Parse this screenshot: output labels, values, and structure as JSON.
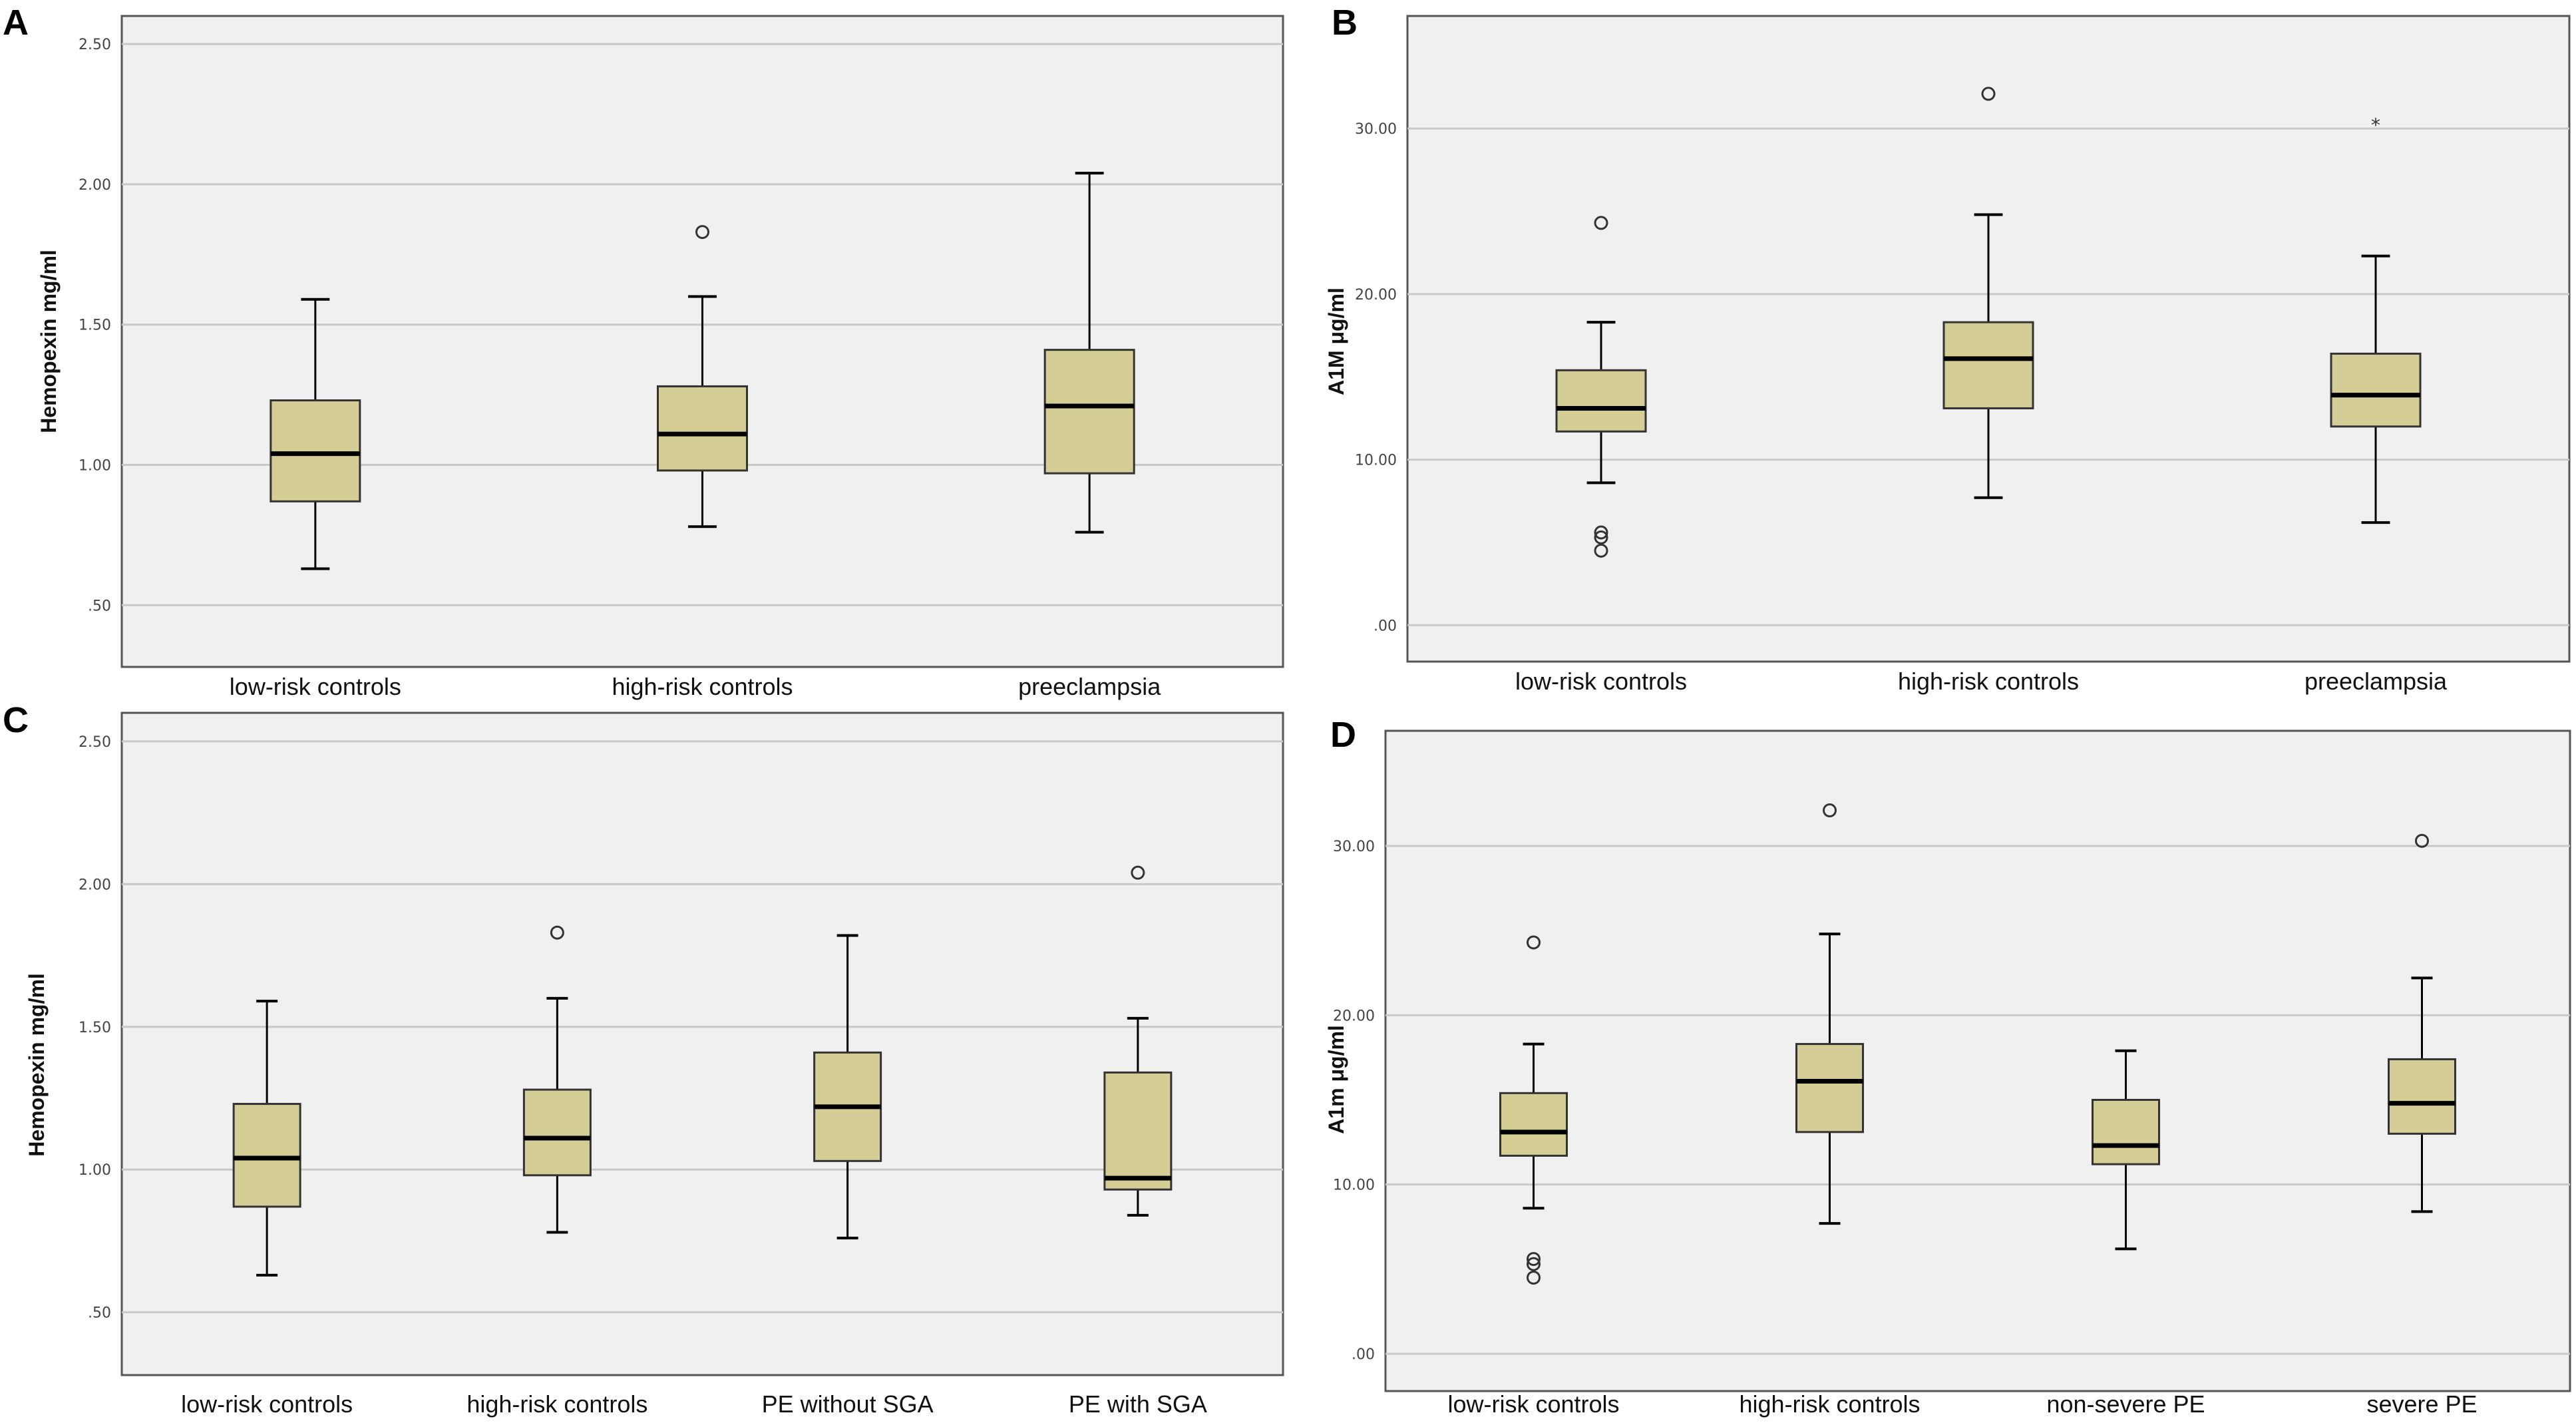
{
  "chart_data": [
    {
      "panel": "A",
      "type": "box",
      "ylabel": "Hemopexin mg/ml",
      "ylim": [
        0.28,
        2.6
      ],
      "yticks": [
        0.5,
        1.0,
        1.5,
        2.0,
        2.5
      ],
      "ytick_labels": [
        ".50",
        "1.00",
        "1.50",
        "2.00",
        "2.50"
      ],
      "categories": [
        "low-risk controls",
        "high-risk controls",
        "preeclampsia"
      ],
      "boxes": [
        {
          "min": 0.63,
          "q1": 0.87,
          "median": 1.04,
          "q3": 1.23,
          "max": 1.59,
          "outliers": [],
          "extremes": []
        },
        {
          "min": 0.78,
          "q1": 0.98,
          "median": 1.11,
          "q3": 1.28,
          "max": 1.6,
          "outliers": [
            1.83
          ],
          "extremes": []
        },
        {
          "min": 0.76,
          "q1": 0.97,
          "median": 1.21,
          "q3": 1.41,
          "max": 2.04,
          "outliers": [],
          "extremes": []
        }
      ]
    },
    {
      "panel": "B",
      "type": "box",
      "ylabel": "A1M μg/ml",
      "ylim": [
        -2.2,
        36.8
      ],
      "yticks": [
        0,
        10,
        20,
        30
      ],
      "ytick_labels": [
        ".00",
        "10.00",
        "20.00",
        "30.00"
      ],
      "categories": [
        "low-risk controls",
        "high-risk controls",
        "preeclampsia"
      ],
      "boxes": [
        {
          "min": 8.6,
          "q1": 11.7,
          "median": 13.1,
          "q3": 15.4,
          "max": 18.3,
          "outliers": [
            24.3,
            5.6,
            5.3,
            4.5
          ],
          "extremes": []
        },
        {
          "min": 7.7,
          "q1": 13.1,
          "median": 16.1,
          "q3": 18.3,
          "max": 24.8,
          "outliers": [
            32.1
          ],
          "extremes": []
        },
        {
          "min": 6.2,
          "q1": 12.0,
          "median": 13.9,
          "q3": 16.4,
          "max": 22.3,
          "outliers": [],
          "extremes": [
            30.3
          ]
        }
      ]
    },
    {
      "panel": "C",
      "type": "box",
      "ylabel": "Hemopexin mg/ml",
      "ylim": [
        0.28,
        2.6
      ],
      "yticks": [
        0.5,
        1.0,
        1.5,
        2.0,
        2.5
      ],
      "ytick_labels": [
        ".50",
        "1.00",
        "1.50",
        "2.00",
        "2.50"
      ],
      "categories": [
        "low-risk controls",
        "high-risk controls",
        "PE without SGA",
        "PE with SGA"
      ],
      "boxes": [
        {
          "min": 0.63,
          "q1": 0.87,
          "median": 1.04,
          "q3": 1.23,
          "max": 1.59,
          "outliers": [],
          "extremes": []
        },
        {
          "min": 0.78,
          "q1": 0.98,
          "median": 1.11,
          "q3": 1.28,
          "max": 1.6,
          "outliers": [
            1.83
          ],
          "extremes": []
        },
        {
          "min": 0.76,
          "q1": 1.03,
          "median": 1.22,
          "q3": 1.41,
          "max": 1.82,
          "outliers": [],
          "extremes": []
        },
        {
          "min": 0.84,
          "q1": 0.93,
          "median": 0.97,
          "q3": 1.34,
          "max": 1.53,
          "outliers": [
            2.04
          ],
          "extremes": []
        }
      ]
    },
    {
      "panel": "D",
      "type": "box",
      "ylabel": "A1m μg/ml",
      "ylim": [
        -2.2,
        36.8
      ],
      "yticks": [
        0,
        10,
        20,
        30
      ],
      "ytick_labels": [
        ".00",
        "10.00",
        "20.00",
        "30.00"
      ],
      "categories": [
        "low-risk controls",
        "high-risk controls",
        "non-severe PE",
        "severe PE"
      ],
      "boxes": [
        {
          "min": 8.6,
          "q1": 11.7,
          "median": 13.1,
          "q3": 15.4,
          "max": 18.3,
          "outliers": [
            24.3,
            5.6,
            5.3,
            4.5
          ],
          "extremes": []
        },
        {
          "min": 7.7,
          "q1": 13.1,
          "median": 16.1,
          "q3": 18.3,
          "max": 24.8,
          "outliers": [
            32.1
          ],
          "extremes": []
        },
        {
          "min": 6.2,
          "q1": 11.2,
          "median": 12.3,
          "q3": 15.0,
          "max": 17.9,
          "outliers": [],
          "extremes": []
        },
        {
          "min": 8.4,
          "q1": 13.0,
          "median": 14.8,
          "q3": 17.4,
          "max": 22.2,
          "outliers": [
            30.3
          ],
          "extremes": []
        }
      ]
    }
  ],
  "style": {
    "box_fill": "#d4cd96",
    "plot_background": "#f0f0f0",
    "grid_color": "#c8c8c8"
  }
}
